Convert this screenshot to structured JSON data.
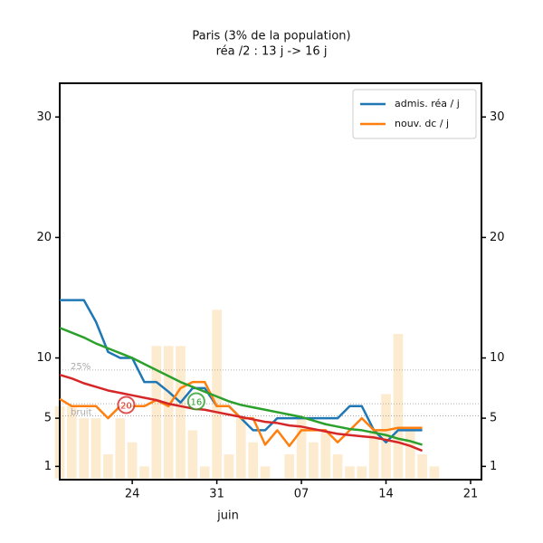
{
  "chart_data": {
    "type": "line",
    "title": "Paris (3% de la population)",
    "subtitle": "réa /2 : 13 j -> 16 j",
    "month_label": "juin",
    "xlim": [
      18,
      52.9
    ],
    "xticks": [
      {
        "value": 24,
        "label": "24"
      },
      {
        "value": 31,
        "label": "31"
      },
      {
        "value": 38,
        "label": "07"
      },
      {
        "value": 45,
        "label": "14"
      },
      {
        "value": 52,
        "label": "21"
      }
    ],
    "ylim": [
      -0.1,
      32.8
    ],
    "yticks": [
      1,
      5,
      10,
      20,
      30
    ],
    "legend": "upper right",
    "bars": {
      "color": "#fdebd0",
      "x": [
        18,
        19,
        20,
        21,
        22,
        23,
        24,
        25,
        26,
        27,
        28,
        29,
        30,
        31,
        32,
        33,
        34,
        35,
        36,
        37,
        38,
        39,
        40,
        41,
        42,
        43,
        44,
        45,
        46,
        47,
        48,
        49
      ],
      "values": [
        6,
        6,
        5,
        5,
        2,
        5,
        3,
        1,
        11,
        11,
        11,
        4,
        1,
        14,
        2,
        5,
        3,
        1,
        0,
        2,
        5,
        3,
        4,
        2,
        1,
        1,
        4,
        7,
        12,
        4,
        2,
        1
      ]
    },
    "x": [
      18,
      19,
      20,
      21,
      22,
      23,
      24,
      25,
      26,
      27,
      28,
      29,
      30,
      31,
      32,
      33,
      34,
      35,
      36,
      37,
      38,
      39,
      40,
      41,
      42,
      43,
      44,
      45,
      46,
      47,
      48
    ],
    "series": [
      {
        "name": "admis. réa / j",
        "color": "#1f77b4",
        "values": [
          14.8,
          14.8,
          14.8,
          13,
          10.5,
          10,
          10,
          8,
          8,
          7.2,
          6.3,
          7.5,
          7.5,
          6,
          6,
          5,
          4,
          4,
          5,
          5,
          5,
          5,
          5,
          5,
          6,
          6,
          4,
          3,
          4,
          4,
          4
        ]
      },
      {
        "name": "nouv. dc / j",
        "color": "#ff7f0e",
        "values": [
          6.6,
          6,
          6,
          6,
          5,
          6,
          6,
          6,
          6.5,
          6,
          7.5,
          8,
          8,
          6,
          6,
          5,
          5,
          2.8,
          4,
          2.7,
          4,
          4,
          4,
          3,
          4,
          5,
          4,
          4,
          4.2,
          4.2,
          4.2
        ]
      },
      {
        "color": "#2ca02c",
        "values": [
          12.5,
          12.1,
          11.7,
          11.2,
          10.8,
          10.4,
          10,
          9.5,
          9,
          8.5,
          8,
          7.6,
          7.2,
          6.8,
          6.4,
          6.1,
          5.9,
          5.7,
          5.5,
          5.3,
          5.1,
          4.8,
          4.5,
          4.3,
          4.1,
          4,
          3.8,
          3.6,
          3.3,
          3.1,
          2.8
        ]
      },
      {
        "color": "#d62728",
        "values": [
          8.6,
          8.3,
          7.9,
          7.6,
          7.3,
          7.1,
          6.9,
          6.7,
          6.5,
          6.2,
          6,
          5.8,
          5.7,
          5.5,
          5.3,
          5.1,
          4.9,
          4.7,
          4.6,
          4.4,
          4.3,
          4.1,
          3.9,
          3.7,
          3.6,
          3.5,
          3.4,
          3.2,
          3,
          2.7,
          2.3
        ]
      }
    ],
    "reference_lines": [
      {
        "label": "25%",
        "value": 9.0
      },
      {
        "value": 6.2
      },
      {
        "label": "bruit",
        "value": 5.2
      }
    ],
    "annotations": [
      {
        "text": "20",
        "x": 23.5,
        "y": 6.1,
        "color": "#d62728"
      },
      {
        "text": "16",
        "x": 29.3,
        "y": 6.4,
        "color": "#2ca02c"
      }
    ]
  }
}
